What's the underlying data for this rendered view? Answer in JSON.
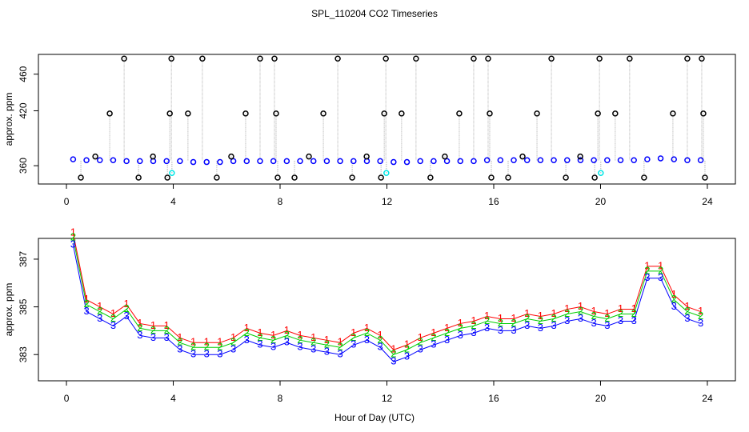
{
  "title": "SPL_110204  CO2 Timeseries",
  "xlabel": "Hour of Day (UTC)",
  "chart_data": [
    {
      "type": "scatter",
      "ylabel": "approx. ppm",
      "xlim": [
        -1.05,
        25.05
      ],
      "xticks": [
        0,
        4,
        8,
        12,
        16,
        20,
        24
      ],
      "ylim": [
        340,
        481.6
      ],
      "yticks": [
        360,
        420,
        460
      ],
      "series": [
        {
          "color": "#0000ff",
          "x": [
            0.25,
            0.75,
            1.25,
            1.75,
            2.25,
            2.75,
            3.25,
            3.75,
            4.25,
            4.75,
            5.25,
            5.75,
            6.25,
            6.75,
            7.25,
            7.75,
            8.25,
            8.75,
            9.25,
            9.75,
            10.25,
            10.75,
            11.25,
            11.75,
            12.25,
            12.75,
            13.25,
            13.75,
            14.25,
            14.75,
            15.25,
            15.75,
            16.25,
            16.75,
            17.25,
            17.75,
            18.25,
            18.75,
            19.25,
            19.75,
            20.25,
            20.75,
            21.25,
            21.75,
            22.25,
            22.75,
            23.25,
            23.75
          ],
          "values": [
            367,
            366,
            366,
            366,
            365,
            365,
            365,
            365,
            365,
            364,
            364,
            364,
            365,
            365,
            365,
            365,
            365,
            365,
            365,
            365,
            365,
            365,
            365,
            365,
            364,
            364,
            365,
            365,
            365,
            365,
            365,
            366,
            366,
            366,
            366,
            366,
            366,
            366,
            366,
            366,
            366,
            366,
            366,
            367,
            368,
            367,
            366,
            366
          ]
        },
        {
          "color": "#000000",
          "x": [
            0.54,
            1.08,
            1.62,
            2.16,
            2.7,
            3.24,
            3.78,
            3.87,
            3.93,
            4.55,
            5.09,
            5.63,
            6.17,
            6.71,
            7.25,
            7.79,
            7.85,
            7.91,
            8.54,
            9.08,
            9.62,
            10.16,
            10.7,
            11.24,
            11.78,
            11.9,
            11.96,
            12.55,
            13.09,
            13.63,
            14.17,
            14.71,
            15.25,
            15.79,
            15.85,
            15.91,
            16.54,
            17.08,
            17.62,
            18.16,
            18.7,
            19.24,
            19.78,
            19.9,
            19.96,
            20.55,
            21.09,
            21.63,
            22.71,
            23.25,
            23.79,
            23.85,
            23.91
          ],
          "values": [
            347,
            370,
            417,
            477,
            347,
            370,
            347,
            417,
            477,
            417,
            477,
            347,
            370,
            417,
            477,
            477,
            417,
            347,
            347,
            370,
            417,
            477,
            347,
            370,
            347,
            417,
            477,
            417,
            477,
            347,
            370,
            417,
            477,
            477,
            417,
            347,
            347,
            370,
            417,
            477,
            347,
            370,
            347,
            417,
            477,
            417,
            477,
            347,
            417,
            477,
            477,
            417,
            347
          ]
        },
        {
          "color": "#00e5e5",
          "x": [
            3.95,
            11.98,
            20.01
          ],
          "values": [
            352,
            352,
            352
          ]
        }
      ]
    },
    {
      "type": "line",
      "ylabel": "approx. ppm",
      "xlim": [
        -1.05,
        25.05
      ],
      "xticks": [
        0,
        4,
        8,
        12,
        16,
        20,
        24
      ],
      "ylim": [
        381.9,
        387.87
      ],
      "yticks": [
        383,
        385,
        387
      ],
      "x": [
        0.25,
        0.75,
        1.25,
        1.75,
        2.25,
        2.75,
        3.25,
        3.75,
        4.25,
        4.75,
        5.25,
        5.75,
        6.25,
        6.75,
        7.25,
        7.75,
        8.25,
        8.75,
        9.25,
        9.75,
        10.25,
        10.75,
        11.25,
        11.75,
        12.25,
        12.75,
        13.25,
        13.75,
        14.25,
        14.75,
        15.25,
        15.75,
        16.25,
        16.75,
        17.25,
        17.75,
        18.25,
        18.75,
        19.25,
        19.75,
        20.25,
        20.75,
        21.25,
        21.75,
        22.25,
        22.75,
        23.25,
        23.75
      ],
      "series": [
        {
          "marker": "1",
          "color": "#ff0000",
          "values": [
            388.1,
            385.3,
            385.0,
            384.7,
            385.1,
            384.3,
            384.2,
            384.2,
            383.7,
            383.5,
            383.5,
            383.5,
            383.7,
            384.1,
            383.9,
            383.8,
            384.0,
            383.8,
            383.7,
            383.6,
            383.5,
            383.9,
            384.1,
            383.8,
            383.2,
            383.4,
            383.7,
            383.9,
            384.1,
            384.3,
            384.4,
            384.6,
            384.5,
            384.5,
            384.7,
            384.6,
            384.7,
            384.9,
            385.0,
            384.8,
            384.7,
            384.9,
            384.9,
            386.7,
            386.7,
            385.5,
            385.0,
            384.8
          ]
        },
        {
          "marker": "2",
          "color": "#00cd00",
          "values": [
            387.9,
            385.1,
            384.8,
            384.5,
            384.9,
            384.1,
            384.0,
            384.0,
            383.5,
            383.3,
            383.3,
            383.3,
            383.5,
            383.9,
            383.7,
            383.6,
            383.8,
            383.6,
            383.5,
            383.4,
            383.3,
            383.7,
            383.9,
            383.6,
            383.0,
            383.2,
            383.5,
            383.7,
            383.9,
            384.1,
            384.2,
            384.4,
            384.3,
            384.3,
            384.5,
            384.4,
            384.5,
            384.7,
            384.8,
            384.6,
            384.5,
            384.7,
            384.7,
            386.5,
            386.5,
            385.3,
            384.8,
            384.6
          ]
        },
        {
          "marker": "3",
          "color": "#0000ff",
          "values": [
            387.6,
            384.8,
            384.5,
            384.2,
            384.6,
            383.8,
            383.7,
            383.7,
            383.2,
            383.0,
            383.0,
            383.0,
            383.2,
            383.6,
            383.4,
            383.3,
            383.5,
            383.3,
            383.2,
            383.1,
            383.0,
            383.4,
            383.6,
            383.3,
            382.7,
            382.9,
            383.2,
            383.4,
            383.6,
            383.8,
            383.9,
            384.1,
            384.0,
            384.0,
            384.2,
            384.1,
            384.2,
            384.4,
            384.5,
            384.3,
            384.2,
            384.4,
            384.4,
            386.2,
            386.2,
            385.0,
            384.5,
            384.3
          ]
        }
      ]
    }
  ]
}
